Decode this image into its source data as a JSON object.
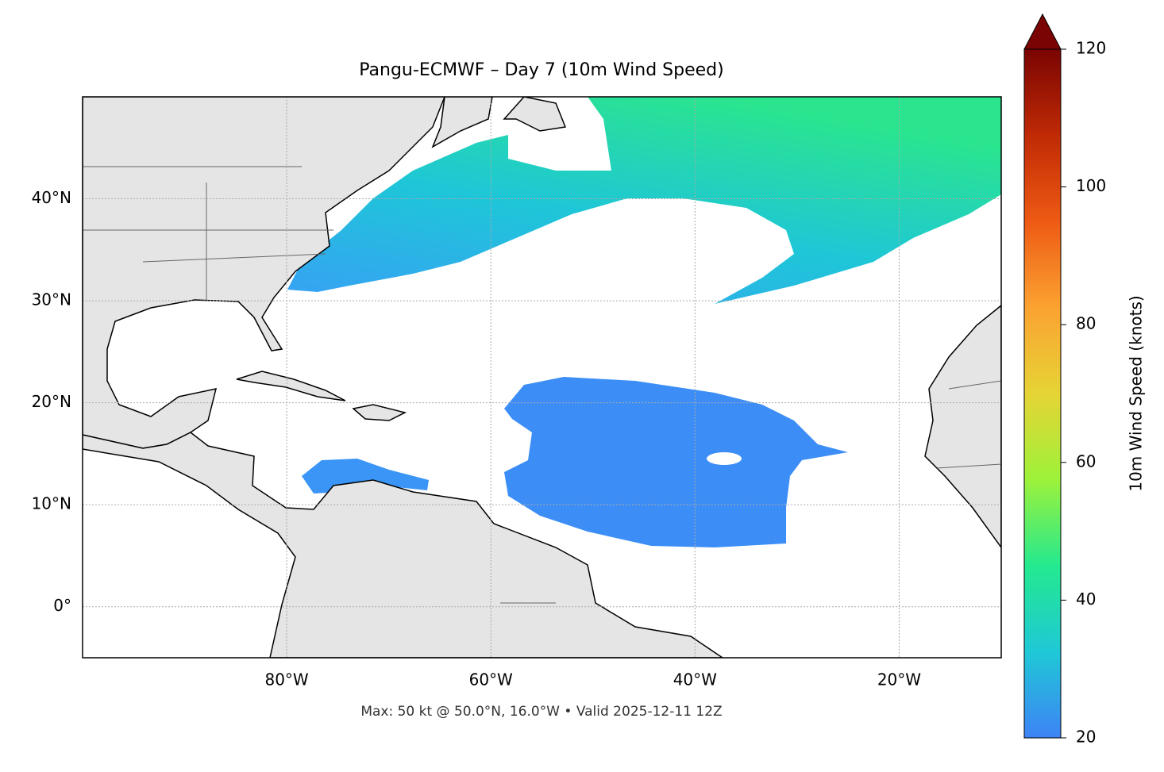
{
  "chart_data": {
    "type": "map",
    "title": "Pangu-ECMWF – Day 7 (10m Wind Speed)",
    "footnote": "Max: 50 kt @ 50.0°N, 16.0°W • Valid 2025-12-11 12Z",
    "xlim": [
      -100,
      -10
    ],
    "ylim": [
      -5,
      50
    ],
    "xticks": [
      {
        "value": -80,
        "label": "80°W"
      },
      {
        "value": -60,
        "label": "60°W"
      },
      {
        "value": -40,
        "label": "40°W"
      },
      {
        "value": -20,
        "label": "20°W"
      }
    ],
    "yticks": [
      {
        "value": 0,
        "label": "0°"
      },
      {
        "value": 10,
        "label": "10°N"
      },
      {
        "value": 20,
        "label": "20°N"
      },
      {
        "value": 30,
        "label": "30°N"
      },
      {
        "value": 40,
        "label": "40°N"
      }
    ],
    "grid": true,
    "colorbar": {
      "label": "10m Wind Speed (knots)",
      "lim": [
        20,
        120
      ],
      "ticks": [
        20,
        40,
        60,
        80,
        100,
        120
      ],
      "colors": [
        "#3e83f6",
        "#1fc8d6",
        "#24e98f",
        "#9df23a",
        "#e6d435",
        "#fba231",
        "#ee5a14",
        "#c02a05",
        "#7a0403"
      ]
    }
  }
}
